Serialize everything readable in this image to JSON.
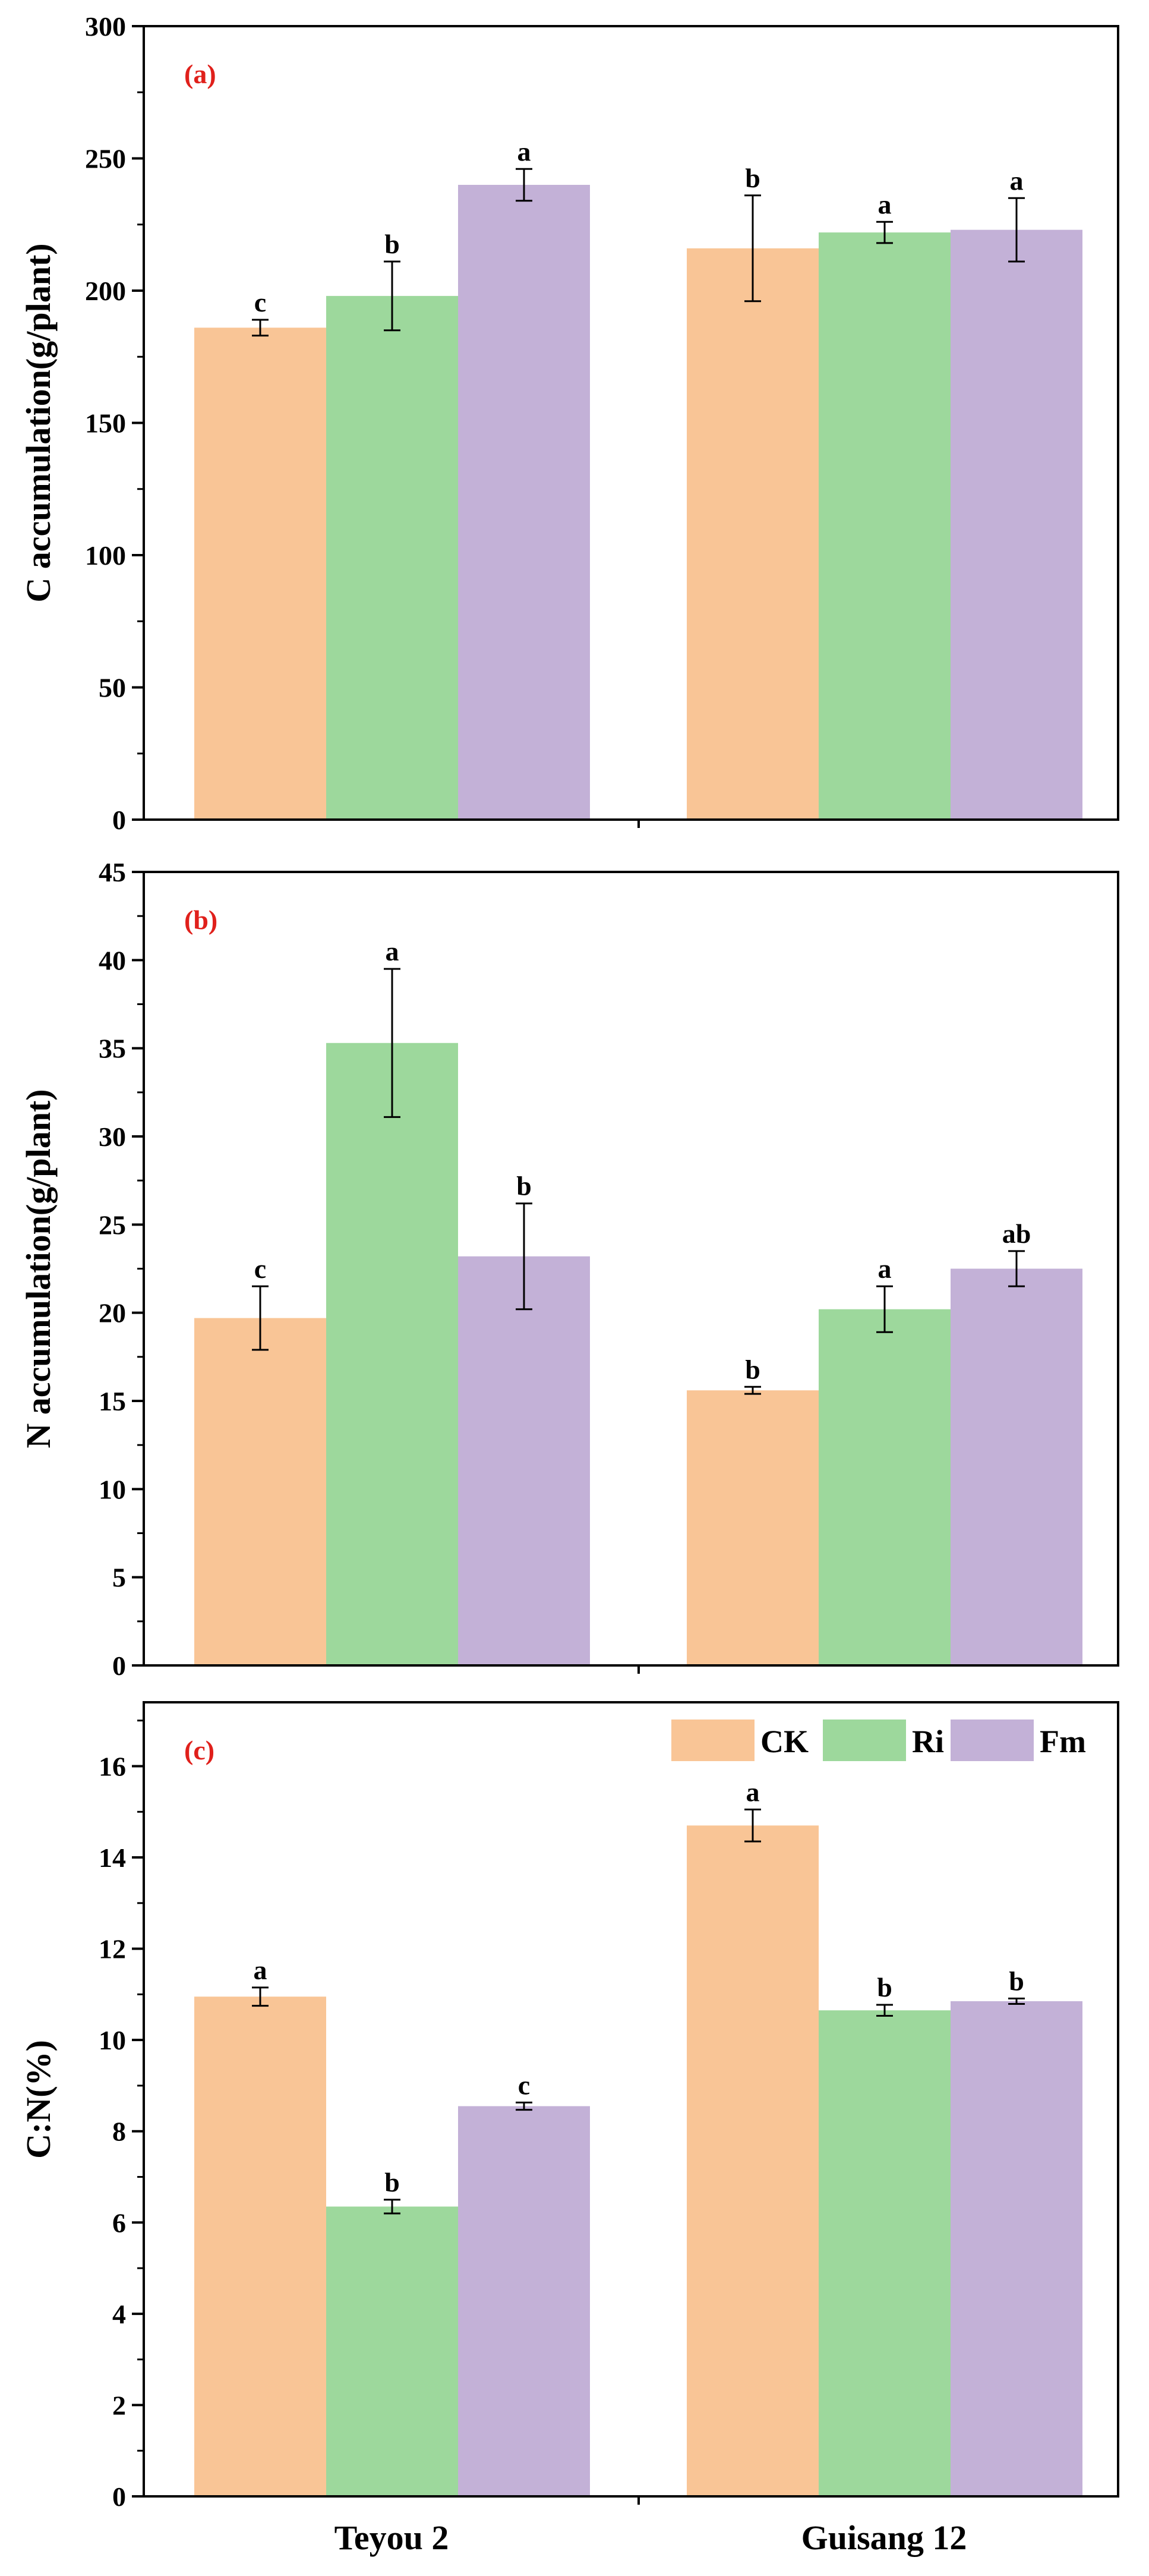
{
  "colors": {
    "CK": "#F9C596",
    "Ri": "#9DD89C",
    "Fm": "#C3B1D7",
    "panel_tag": "#E0201B",
    "axis": "#000000"
  },
  "legend": [
    "CK",
    "Ri",
    "Fm"
  ],
  "chart_data": [
    {
      "type": "bar",
      "panel": "(a)",
      "categories": [
        "Teyou 2",
        "Guisang 12"
      ],
      "ylabel": "C accumulation(g/plant)",
      "ylim": [
        0,
        300
      ],
      "yticks": [
        0,
        50,
        100,
        150,
        200,
        250,
        300
      ],
      "series": [
        {
          "name": "CK",
          "values": [
            186,
            216
          ],
          "errors": [
            3,
            20
          ],
          "letters": [
            "c",
            "b"
          ]
        },
        {
          "name": "Ri",
          "values": [
            198,
            222
          ],
          "errors": [
            13,
            4
          ],
          "letters": [
            "b",
            "a"
          ]
        },
        {
          "name": "Fm",
          "values": [
            240,
            223
          ],
          "errors": [
            6,
            12
          ],
          "letters": [
            "a",
            "a"
          ]
        }
      ]
    },
    {
      "type": "bar",
      "panel": "(b)",
      "categories": [
        "Teyou 2",
        "Guisang 12"
      ],
      "ylabel": "N accumulation(g/plant)",
      "ylim": [
        0,
        45
      ],
      "yticks": [
        0,
        5,
        10,
        15,
        20,
        25,
        30,
        35,
        40,
        45
      ],
      "series": [
        {
          "name": "CK",
          "values": [
            19.7,
            15.6
          ],
          "errors": [
            1.8,
            0.2
          ],
          "letters": [
            "c",
            "b"
          ]
        },
        {
          "name": "Ri",
          "values": [
            35.3,
            20.2
          ],
          "errors": [
            4.2,
            1.3
          ],
          "letters": [
            "a",
            "a"
          ]
        },
        {
          "name": "Fm",
          "values": [
            23.2,
            22.5
          ],
          "errors": [
            3.0,
            1.0
          ],
          "letters": [
            "b",
            "ab"
          ]
        }
      ]
    },
    {
      "type": "bar",
      "panel": "(c)",
      "categories": [
        "Teyou 2",
        "Guisang 12"
      ],
      "ylabel": "C:N(%)",
      "ylim": [
        0,
        17.4
      ],
      "yticks": [
        0,
        2,
        4,
        6,
        8,
        10,
        12,
        14,
        16
      ],
      "series": [
        {
          "name": "CK",
          "values": [
            10.95,
            14.7
          ],
          "errors": [
            0.2,
            0.35
          ],
          "letters": [
            "a",
            "a"
          ]
        },
        {
          "name": "Ri",
          "values": [
            6.35,
            10.65
          ],
          "errors": [
            0.15,
            0.12
          ],
          "letters": [
            "b",
            "b"
          ]
        },
        {
          "name": "Fm",
          "values": [
            8.55,
            10.85
          ],
          "errors": [
            0.08,
            0.06
          ],
          "letters": [
            "c",
            "b"
          ]
        }
      ]
    }
  ]
}
